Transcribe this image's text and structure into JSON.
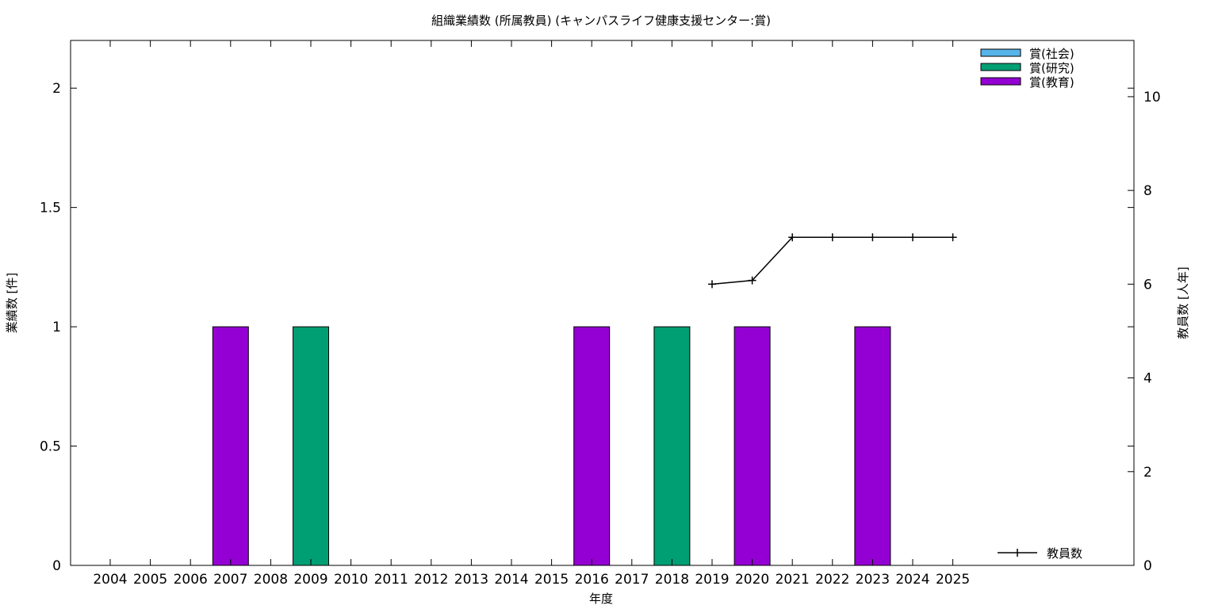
{
  "chart_data": {
    "type": "bar",
    "title": "組織業績数 (所属教員) (キャンパスライフ健康支援センター:賞)",
    "xlabel": "年度",
    "ylabel_left": "業績数 [件]",
    "ylabel_right": "教員数 [人年]",
    "categories": [
      "2004",
      "2005",
      "2006",
      "2007",
      "2008",
      "2009",
      "2010",
      "2011",
      "2012",
      "2013",
      "2014",
      "2015",
      "2016",
      "2017",
      "2018",
      "2019",
      "2020",
      "2021",
      "2022",
      "2023",
      "2024",
      "2025"
    ],
    "left_ylim": [
      0,
      2.2
    ],
    "left_yticks": [
      0,
      0.5,
      1,
      1.5,
      2
    ],
    "left_ytick_labels": [
      "0",
      "0.5",
      "1",
      "1.5",
      "2"
    ],
    "right_ylim": [
      0,
      11.2
    ],
    "right_yticks": [
      0,
      2,
      4,
      6,
      8,
      10
    ],
    "right_ytick_labels": [
      "0",
      "2",
      "4",
      "6",
      "8",
      "10"
    ],
    "grid": false,
    "legend_placement": "top-right",
    "series": [
      {
        "name": "賞(社会)",
        "color": "#56b4e9",
        "values": [
          0,
          0,
          0,
          0,
          0,
          0,
          0,
          0,
          0,
          0,
          0,
          0,
          0,
          0,
          0,
          0,
          0,
          0,
          0,
          0,
          0,
          0
        ]
      },
      {
        "name": "賞(研究)",
        "color": "#009e73",
        "values": [
          0,
          0,
          0,
          0,
          0,
          1,
          0,
          0,
          0,
          0,
          0,
          0,
          0,
          0,
          1,
          0,
          0,
          0,
          0,
          0,
          0,
          0
        ]
      },
      {
        "name": "賞(教育)",
        "color": "#9400d3",
        "values": [
          0,
          0,
          0,
          1,
          0,
          0,
          0,
          0,
          0,
          0,
          0,
          0,
          1,
          0,
          0,
          0,
          1,
          0,
          0,
          1,
          0,
          0
        ]
      }
    ],
    "line_series": {
      "name": "教員数",
      "color": "#000000",
      "legend_placement": "bottom-right",
      "x": [
        "2019",
        "2020",
        "2021",
        "2022",
        "2023",
        "2024",
        "2025"
      ],
      "values": [
        6,
        6.08,
        7,
        7,
        7,
        7,
        7
      ]
    }
  }
}
